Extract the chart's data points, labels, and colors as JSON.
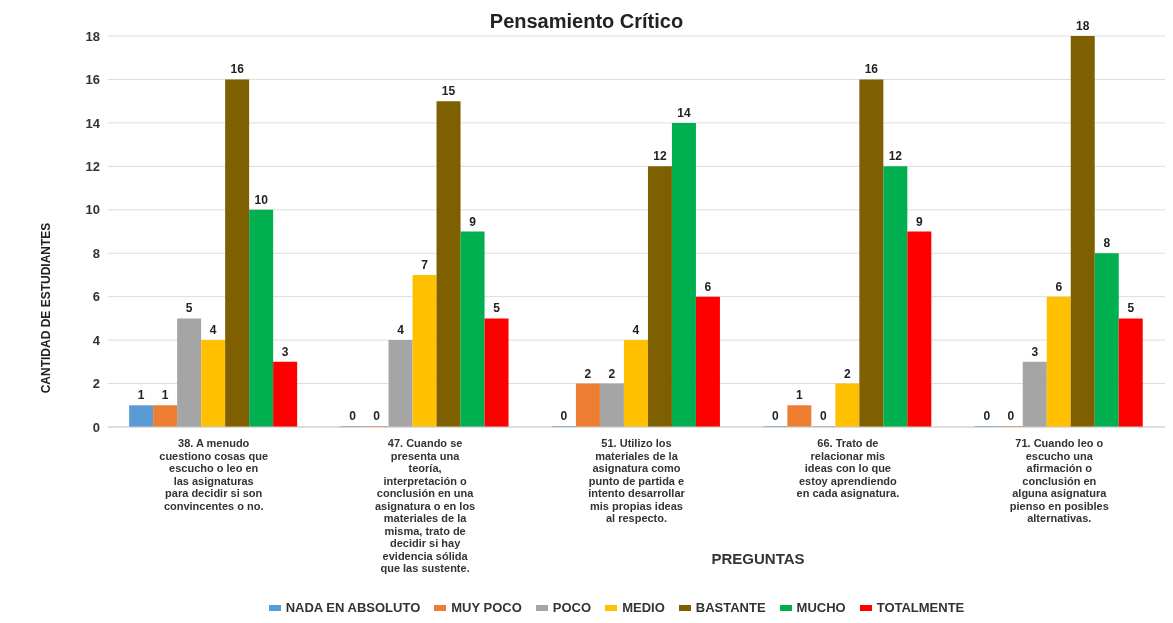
{
  "chart_data": {
    "type": "bar",
    "title": "Pensamiento Crítico",
    "xlabel": "PREGUNTAS",
    "ylabel": "CANTIDAD DE ESTUDIANTES",
    "categories": [
      "38. A menudo cuestiono cosas que escucho o leo en las asignaturas para decidir si son convincentes o no.",
      "47. Cuando se presenta una teoría, interpretación o conclusión en una asignatura o en los materiales de la misma, trato de decidir si hay evidencia sólida que las sustente.",
      "51. Utilizo los materiales de la asignatura como punto de partida e intento desarrollar mis propias ideas al respecto.",
      "66. Trato de relacionar mis ideas con lo que estoy aprendiendo en cada asignatura.",
      "71. Cuando leo o escucho una afirmación o conclusión en alguna asignatura pienso en posibles alternativas."
    ],
    "series": [
      {
        "name": "NADA EN ABSOLUTO",
        "color": "#5b9bd5",
        "values": [
          1,
          0,
          0,
          0,
          0
        ]
      },
      {
        "name": "MUY POCO",
        "color": "#ed7d31",
        "values": [
          1,
          0,
          2,
          1,
          0
        ]
      },
      {
        "name": "POCO",
        "color": "#a5a5a5",
        "values": [
          5,
          4,
          2,
          0,
          3
        ]
      },
      {
        "name": "MEDIO",
        "color": "#ffc000",
        "values": [
          4,
          7,
          4,
          2,
          6
        ]
      },
      {
        "name": "BASTANTE",
        "color": "#7f6000",
        "values": [
          16,
          15,
          12,
          16,
          18
        ]
      },
      {
        "name": "MUCHO",
        "color": "#00b050",
        "values": [
          10,
          9,
          14,
          12,
          8
        ]
      },
      {
        "name": "TOTALMENTE",
        "color": "#ff0000",
        "values": [
          3,
          5,
          6,
          9,
          5
        ]
      }
    ],
    "ylim": [
      0,
      18
    ],
    "yticks": [
      0,
      2,
      4,
      6,
      8,
      10,
      12,
      14,
      16,
      18
    ],
    "grid": "y",
    "legend": "bottom",
    "data_labels": true
  }
}
